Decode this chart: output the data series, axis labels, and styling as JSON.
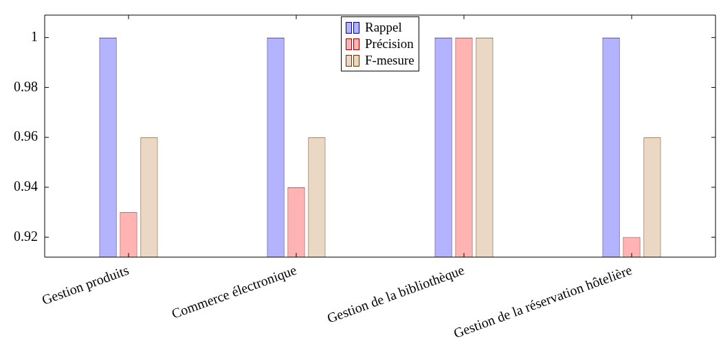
{
  "chart_data": {
    "type": "bar",
    "categories": [
      "Gestion produits",
      "Commerce électronique",
      "Gestion de la bibliothèque",
      "Gestion de la réservation hôtelière"
    ],
    "series": [
      {
        "name": "Rappel",
        "color": "#b3b3ff",
        "values": [
          1,
          1,
          1,
          1
        ]
      },
      {
        "name": "Précision",
        "color": "#ffb3b3",
        "values": [
          0.93,
          0.94,
          1,
          0.92
        ]
      },
      {
        "name": "F-mesure",
        "color": "#ead8c5",
        "values": [
          0.96,
          0.96,
          1,
          0.96
        ]
      }
    ],
    "ylim": [
      0.912,
      1.009
    ],
    "yticks": [
      0.92,
      0.94,
      0.96,
      0.98,
      1
    ],
    "grid": false,
    "legend": "top"
  }
}
